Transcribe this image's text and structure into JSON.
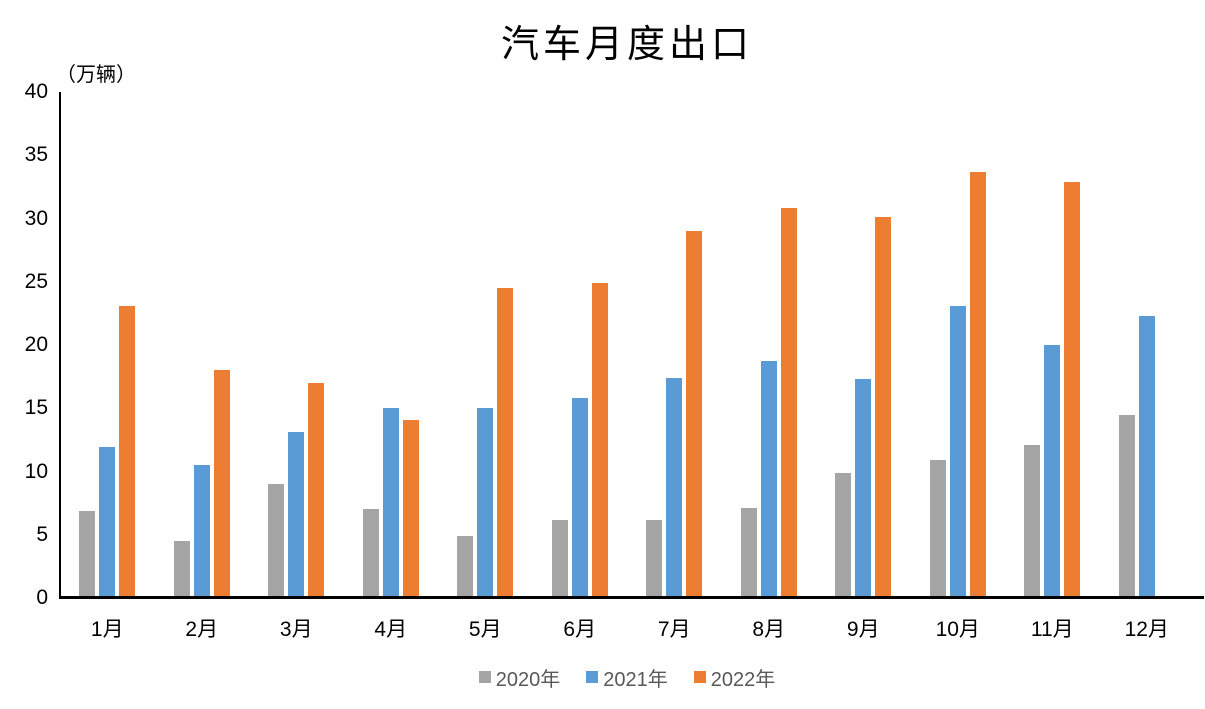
{
  "chart_data": {
    "type": "bar",
    "title": "汽车月度出口",
    "unit_label": "（万辆）",
    "categories": [
      "1月",
      "2月",
      "3月",
      "4月",
      "5月",
      "6月",
      "7月",
      "8月",
      "9月",
      "10月",
      "11月",
      "12月"
    ],
    "series": [
      {
        "name": "2020年",
        "color": "#A5A5A5",
        "values": [
          6.9,
          4.5,
          9.0,
          7.0,
          4.9,
          6.2,
          6.2,
          7.1,
          9.9,
          10.9,
          12.1,
          14.5
        ]
      },
      {
        "name": "2021年",
        "color": "#5B9BD5",
        "values": [
          11.9,
          10.5,
          13.1,
          15.0,
          15.0,
          15.8,
          17.4,
          18.7,
          17.3,
          23.1,
          20.0,
          22.3
        ]
      },
      {
        "name": "2022年",
        "color": "#ED7D31",
        "values": [
          23.1,
          18.0,
          17.0,
          14.1,
          24.5,
          24.9,
          29.0,
          30.8,
          30.1,
          33.7,
          32.9,
          null
        ]
      }
    ],
    "xlabel": "",
    "ylabel": "",
    "ylim": [
      0,
      40
    ],
    "yticks": [
      40,
      35,
      30,
      25,
      20,
      15,
      10,
      5,
      0
    ],
    "grid": false,
    "legend_position": "bottom",
    "axis_color": "#000000",
    "legend_text_color": "#595959",
    "background_color": "#ffffff"
  }
}
